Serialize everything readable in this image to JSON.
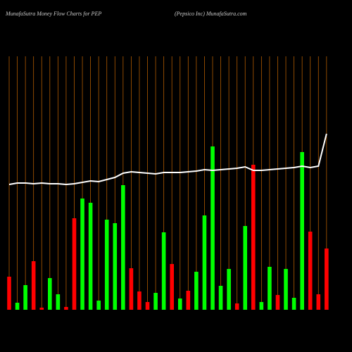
{
  "chart_data": {
    "type": "bar",
    "title": "MunafaSutra  Money Flow  Charts for PEP",
    "subtitle": "(Pepsico  Inc) MunafaSutra.com",
    "categories": [
      null,
      null,
      null,
      null,
      null,
      null,
      null,
      null,
      null,
      null,
      null,
      null,
      null,
      null,
      null,
      null,
      null,
      null,
      null,
      null,
      null,
      null,
      null,
      null,
      null,
      null,
      null,
      null,
      null,
      null,
      null,
      null,
      null,
      null,
      null,
      null,
      null,
      null,
      null,
      null
    ],
    "values": [
      47,
      10,
      35,
      69,
      3,
      45,
      22,
      4,
      130,
      158,
      152,
      13,
      128,
      123,
      177,
      59,
      26,
      11,
      24,
      110,
      65,
      16,
      27,
      54,
      134,
      232,
      34,
      58,
      9,
      119,
      206,
      11,
      61,
      21,
      58,
      17,
      224,
      111,
      22,
      87
    ],
    "colors": [
      "#ff0000",
      "#00ff00",
      "#00ff00",
      "#ff0000",
      "#ff0000",
      "#00ff00",
      "#00ff00",
      "#ff0000",
      "#ff0000",
      "#00ff00",
      "#00ff00",
      "#00ff00",
      "#00ff00",
      "#00ff00",
      "#00ff00",
      "#ff0000",
      "#ff0000",
      "#ff0000",
      "#00ff00",
      "#00ff00",
      "#ff0000",
      "#00ff00",
      "#ff0000",
      "#00ff00",
      "#00ff00",
      "#00ff00",
      "#00ff00",
      "#00ff00",
      "#ff0000",
      "#00ff00",
      "#ff0000",
      "#00ff00",
      "#00ff00",
      "#ff0000",
      "#00ff00",
      "#00ff00",
      "#00ff00",
      "#ff0000",
      "#ff0000",
      "#ff0000"
    ],
    "line_values": [
      178,
      180,
      180,
      179,
      180,
      179,
      179,
      178,
      179,
      181,
      183,
      182,
      185,
      188,
      194,
      196,
      195,
      194,
      193,
      195,
      195,
      195,
      196,
      197,
      199,
      198,
      199,
      200,
      201,
      203,
      198,
      198,
      199,
      200,
      201,
      202,
      204,
      202,
      204,
      250
    ],
    "line_color": "#ffffff",
    "grid_color": "#b05a00",
    "ylim": [
      0,
      360
    ]
  }
}
